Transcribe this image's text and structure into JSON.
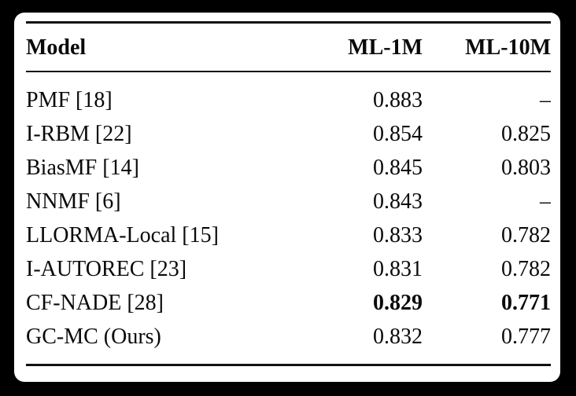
{
  "page": {
    "background_color": "#000000",
    "card_background_color": "#ffffff",
    "text_color": "#0a0a0a",
    "rule_color": "#111111"
  },
  "table": {
    "columns": [
      {
        "label": "Model"
      },
      {
        "label": "ML-1M"
      },
      {
        "label": "ML-10M"
      }
    ],
    "rows": [
      {
        "model": "PMF [18]",
        "ml1m": "0.883",
        "ml10m": "–",
        "bold": false
      },
      {
        "model": "I-RBM [22]",
        "ml1m": "0.854",
        "ml10m": "0.825",
        "bold": false
      },
      {
        "model": "BiasMF [14]",
        "ml1m": "0.845",
        "ml10m": "0.803",
        "bold": false
      },
      {
        "model": "NNMF [6]",
        "ml1m": "0.843",
        "ml10m": "–",
        "bold": false
      },
      {
        "model": "LLORMA-Local [15]",
        "ml1m": "0.833",
        "ml10m": "0.782",
        "bold": false
      },
      {
        "model": "I-AUTOREC [23]",
        "ml1m": "0.831",
        "ml10m": "0.782",
        "bold": false
      },
      {
        "model": "CF-NADE [28]",
        "ml1m": "0.829",
        "ml10m": "0.771",
        "bold": true
      },
      {
        "model": "GC-MC (Ours)",
        "ml1m": "0.832",
        "ml10m": "0.777",
        "bold": false
      }
    ]
  }
}
